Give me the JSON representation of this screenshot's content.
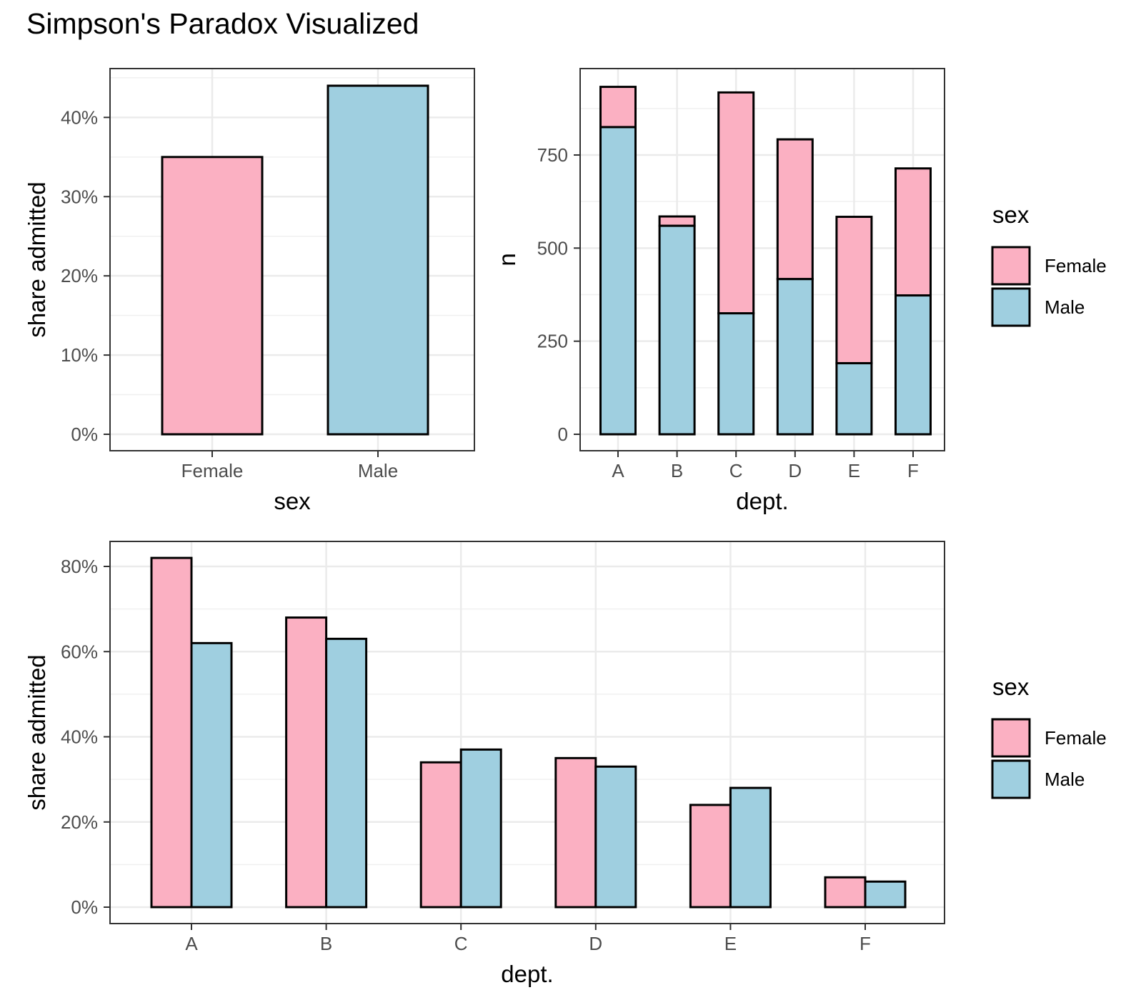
{
  "title": "Simpson's Paradox Visualized",
  "colors": {
    "female": "#fbb0c2",
    "male": "#9fcfe0",
    "outline": "#000000"
  },
  "chart_data": [
    {
      "type": "bar",
      "categories": [
        "Female",
        "Male"
      ],
      "values": [
        0.35,
        0.44
      ],
      "xlabel": "sex",
      "ylabel": "share admitted",
      "ylabel_text": "share admitted",
      "ylim": [
        0,
        0.46
      ],
      "yticks": [
        0,
        0.1,
        0.2,
        0.3,
        0.4
      ],
      "ytick_labels": [
        "0%",
        "10%",
        "20%",
        "30%",
        "40%"
      ],
      "grid": true
    },
    {
      "type": "bar",
      "stacked": true,
      "categories": [
        "A",
        "B",
        "C",
        "D",
        "E",
        "F"
      ],
      "series": [
        {
          "name": "Female",
          "values": [
            108,
            25,
            593,
            375,
            393,
            341
          ]
        },
        {
          "name": "Male",
          "values": [
            825,
            560,
            325,
            417,
            191,
            373
          ]
        }
      ],
      "xlabel": "dept.",
      "ylabel": "n",
      "ylim": [
        0,
        950
      ],
      "yticks": [
        0,
        250,
        500,
        750
      ],
      "ytick_labels": [
        "0",
        "250",
        "500",
        "750"
      ],
      "grid": true,
      "legend": {
        "title": "sex",
        "entries": [
          "Female",
          "Male"
        ],
        "position": "right"
      }
    },
    {
      "type": "bar",
      "grouped": true,
      "categories": [
        "A",
        "B",
        "C",
        "D",
        "E",
        "F"
      ],
      "series": [
        {
          "name": "Female",
          "values": [
            0.82,
            0.68,
            0.34,
            0.35,
            0.24,
            0.07
          ]
        },
        {
          "name": "Male",
          "values": [
            0.62,
            0.63,
            0.37,
            0.33,
            0.28,
            0.06
          ]
        }
      ],
      "xlabel": "dept.",
      "ylabel": "share admitted",
      "ylim": [
        0,
        0.84
      ],
      "yticks": [
        0,
        0.2,
        0.4,
        0.6,
        0.8
      ],
      "ytick_labels": [
        "0%",
        "20%",
        "40%",
        "60%",
        "80%"
      ],
      "grid": true,
      "legend": {
        "title": "sex",
        "entries": [
          "Female",
          "Male"
        ],
        "position": "right"
      }
    }
  ]
}
